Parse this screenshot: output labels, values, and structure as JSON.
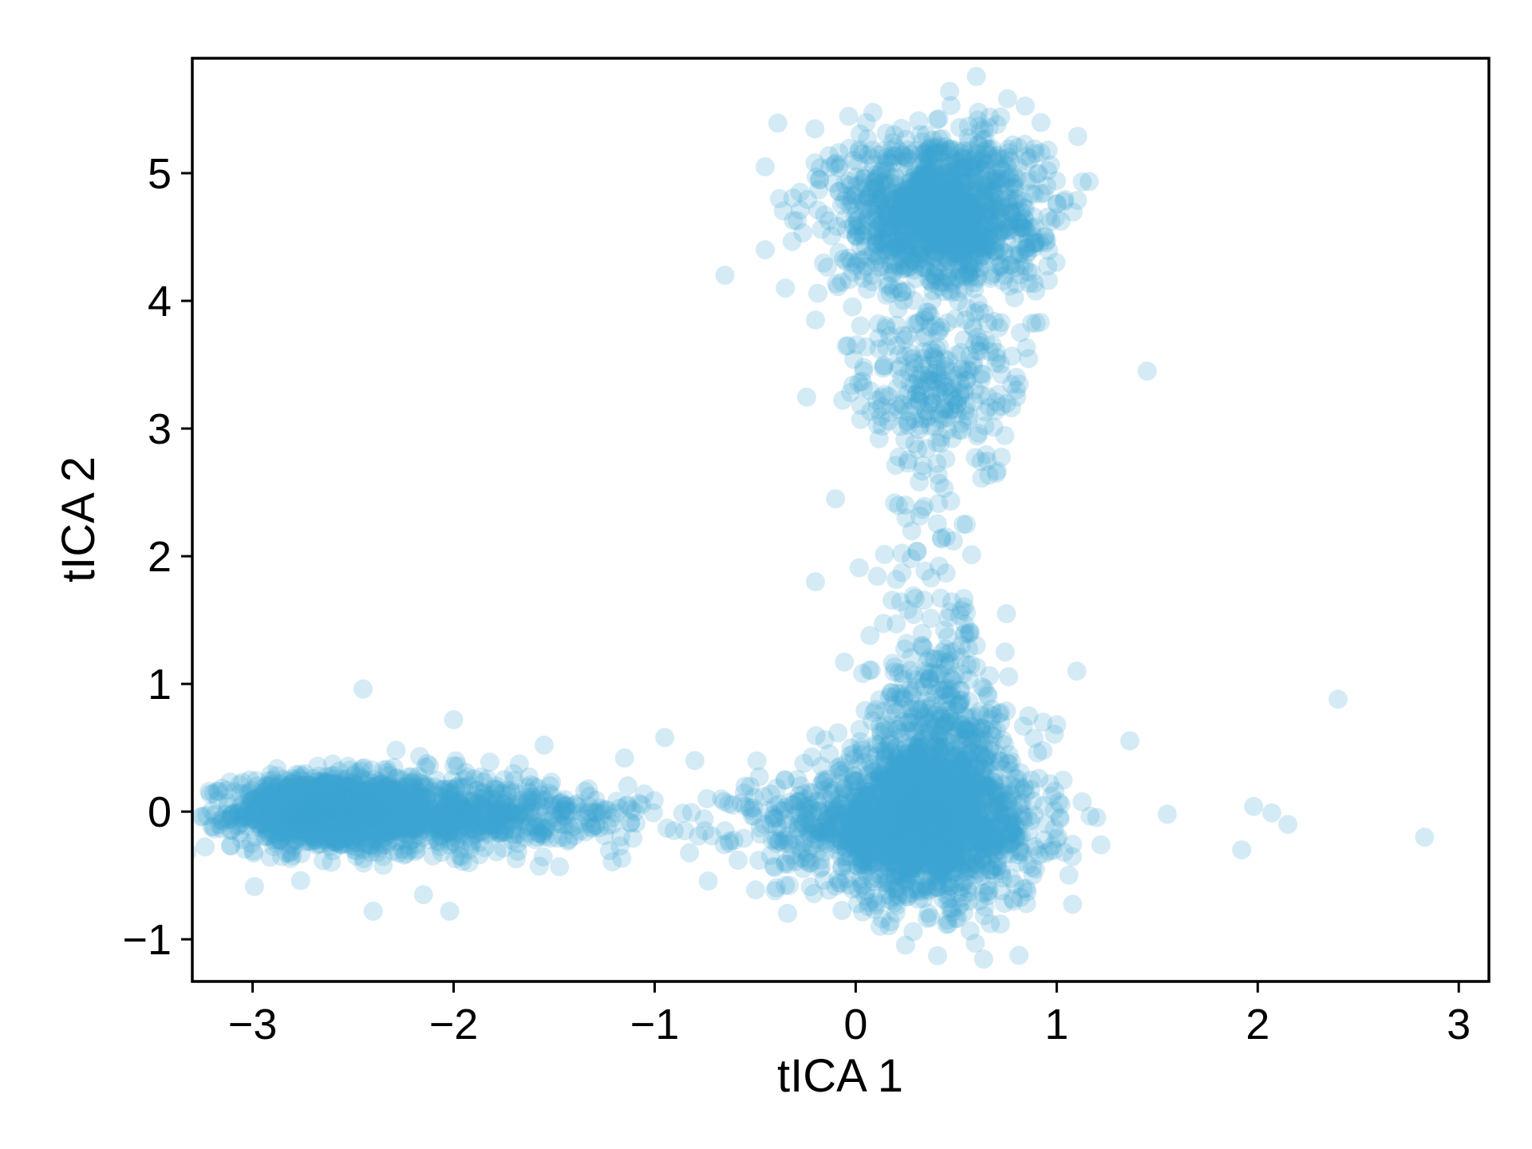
{
  "chart_data": {
    "type": "scatter",
    "title": "",
    "xlabel": "tICA 1",
    "ylabel": "tICA 2",
    "xlim": [
      -3.3,
      3.15
    ],
    "ylim": [
      -1.33,
      5.9
    ],
    "xticks": [
      -3,
      -2,
      -1,
      0,
      1,
      2,
      3
    ],
    "yticks": [
      -1,
      0,
      1,
      2,
      3,
      4,
      5
    ],
    "xtick_labels": [
      "−3",
      "−2",
      "−1",
      "0",
      "1",
      "2",
      "3"
    ],
    "ytick_labels": [
      "−1",
      "0",
      "1",
      "2",
      "3",
      "4",
      "5"
    ],
    "grid": false,
    "legend": "none",
    "marker_color": "#3ba6d1",
    "marker_alpha": 0.22,
    "series": [
      {
        "clusters": [
          {
            "cx": -2.65,
            "cy": 0.0,
            "sx": 0.22,
            "sy": 0.14,
            "n": 1100
          },
          {
            "cx": -2.2,
            "cy": 0.0,
            "sx": 0.35,
            "sy": 0.15,
            "n": 700
          },
          {
            "cx": -1.6,
            "cy": -0.05,
            "sx": 0.3,
            "sy": 0.13,
            "n": 200
          },
          {
            "cx": 0.35,
            "cy": -0.1,
            "sx": 0.28,
            "sy": 0.3,
            "n": 1400
          },
          {
            "cx": 0.1,
            "cy": -0.1,
            "sx": 0.35,
            "sy": 0.18,
            "n": 400
          },
          {
            "cx": 0.4,
            "cy": 0.45,
            "sx": 0.18,
            "sy": 0.45,
            "n": 500
          },
          {
            "cx": 0.42,
            "cy": 4.7,
            "sx": 0.25,
            "sy": 0.32,
            "n": 1300
          },
          {
            "cx": 0.4,
            "cy": 3.3,
            "sx": 0.22,
            "sy": 0.3,
            "n": 250
          },
          {
            "cx": 0.35,
            "cy": 1.9,
            "sx": 0.15,
            "sy": 0.5,
            "n": 60
          }
        ],
        "points": [
          {
            "x": -0.65,
            "y": 4.2
          },
          {
            "x": 1.45,
            "y": 3.45
          },
          {
            "x": 1.1,
            "y": 1.1
          },
          {
            "x": 2.4,
            "y": 0.88
          },
          {
            "x": 1.55,
            "y": -0.02
          },
          {
            "x": 1.98,
            "y": 0.04
          },
          {
            "x": 2.07,
            "y": -0.01
          },
          {
            "x": 2.15,
            "y": -0.1
          },
          {
            "x": 1.92,
            "y": -0.3
          },
          {
            "x": 2.83,
            "y": -0.2
          },
          {
            "x": 1.22,
            "y": -0.26
          },
          {
            "x": -0.95,
            "y": 0.58
          },
          {
            "x": -0.85,
            "y": -0.15
          },
          {
            "x": -0.75,
            "y": -0.15
          },
          {
            "x": -0.65,
            "y": -0.15
          },
          {
            "x": -0.55,
            "y": 0.2
          },
          {
            "x": -0.45,
            "y": 5.05
          },
          {
            "x": -0.45,
            "y": 4.4
          },
          {
            "x": -0.35,
            "y": 4.1
          },
          {
            "x": -0.2,
            "y": 3.85
          },
          {
            "x": -0.1,
            "y": 2.45
          },
          {
            "x": -0.2,
            "y": 1.8
          },
          {
            "x": 0.7,
            "y": 2.65
          },
          {
            "x": -2.4,
            "y": -0.78
          },
          {
            "x": -2.02,
            "y": -0.78
          },
          {
            "x": -2.15,
            "y": -0.65
          },
          {
            "x": -2.45,
            "y": 0.96
          },
          {
            "x": -2.0,
            "y": 0.72
          },
          {
            "x": -1.55,
            "y": 0.52
          },
          {
            "x": -1.15,
            "y": 0.42
          },
          {
            "x": -0.8,
            "y": 0.4
          },
          {
            "x": 0.72,
            "y": -0.88
          },
          {
            "x": 0.85,
            "y": -0.72
          },
          {
            "x": 1.0,
            "y": 0.68
          },
          {
            "x": 0.6,
            "y": 1.3
          },
          {
            "x": 0.75,
            "y": 1.55
          },
          {
            "x": 0.25,
            "y": 2.3
          },
          {
            "x": 0.45,
            "y": 2.15
          },
          {
            "x": 0.55,
            "y": 2.25
          }
        ]
      }
    ]
  }
}
